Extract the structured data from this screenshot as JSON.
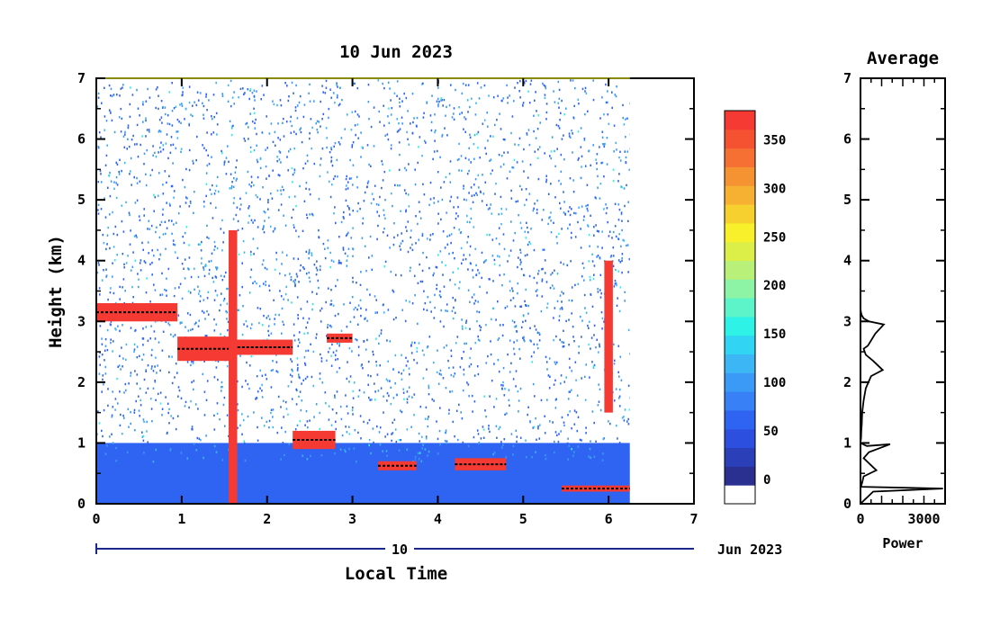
{
  "chart_data": [
    {
      "type": "heatmap",
      "title": "10 Jun 2023",
      "xlabel": "Local Time",
      "ylabel": "Height (km)",
      "xlim": [
        0,
        7
      ],
      "ylim": [
        0,
        7
      ],
      "x_ticks": [
        "0",
        "1",
        "2",
        "3",
        "4",
        "5",
        "6",
        "7"
      ],
      "y_ticks": [
        "0",
        "1",
        "2",
        "3",
        "4",
        "5",
        "6",
        "7"
      ],
      "data_end_time": 6.25,
      "date_axis": {
        "day_label": "10",
        "month_year_label": "Jun 2023"
      },
      "colorbar": {
        "ticks": [
          "0",
          "50",
          "100",
          "150",
          "200",
          "250",
          "300",
          "350"
        ],
        "range": [
          -25,
          380
        ],
        "colors": [
          "#ffffff",
          "#2a3090",
          "#2b3fb8",
          "#2d4fe0",
          "#2f63f2",
          "#3880f5",
          "#3a9af6",
          "#3cb6f4",
          "#32d4f4",
          "#2ef2e6",
          "#5cf4c8",
          "#8cf4a4",
          "#b8f07a",
          "#dcef48",
          "#f7f02a",
          "#f6d02e",
          "#f6b032",
          "#f59232",
          "#f57032",
          "#f55232",
          "#f43a32"
        ]
      },
      "features": [
        {
          "name": "noise-scatter",
          "t": [
            0,
            6.25
          ],
          "z": [
            0.7,
            7
          ],
          "level": 60
        },
        {
          "name": "boundary-layer",
          "t": [
            0,
            6.25
          ],
          "z": [
            0,
            1.0
          ],
          "level": 60
        },
        {
          "name": "cloud-layer",
          "t": [
            0,
            0.95
          ],
          "z": [
            3.0,
            3.3
          ],
          "level": 380
        },
        {
          "name": "cloud-layer",
          "t": [
            0.95,
            1.6
          ],
          "z": [
            2.35,
            2.75
          ],
          "level": 380
        },
        {
          "name": "cloud-layer",
          "t": [
            1.6,
            2.3
          ],
          "z": [
            2.45,
            2.7
          ],
          "level": 380
        },
        {
          "name": "cloud-layer",
          "t": [
            2.7,
            3.0
          ],
          "z": [
            2.65,
            2.8
          ],
          "level": 380
        },
        {
          "name": "precip-streak",
          "t": [
            1.55,
            1.65
          ],
          "z": [
            0,
            4.5
          ],
          "level": 380
        },
        {
          "name": "precip-streak",
          "t": [
            5.95,
            6.05
          ],
          "z": [
            1.5,
            4.0
          ],
          "level": 380
        },
        {
          "name": "low-cloud",
          "t": [
            2.3,
            2.8
          ],
          "z": [
            0.9,
            1.2
          ],
          "level": 380
        },
        {
          "name": "low-cloud",
          "t": [
            3.3,
            3.75
          ],
          "z": [
            0.55,
            0.7
          ],
          "level": 380
        },
        {
          "name": "low-cloud",
          "t": [
            4.2,
            4.8
          ],
          "z": [
            0.55,
            0.75
          ],
          "level": 380
        },
        {
          "name": "low-cloud",
          "t": [
            5.45,
            6.25
          ],
          "z": [
            0.2,
            0.3
          ],
          "level": 380
        }
      ]
    },
    {
      "type": "line",
      "title": "Average",
      "xlabel": "Power",
      "ylabel": "",
      "xlim": [
        0,
        4000
      ],
      "ylim": [
        0,
        7
      ],
      "x_ticks": [
        "0",
        "3000"
      ],
      "y_ticks": [
        "0",
        "1",
        "2",
        "3",
        "4",
        "5",
        "6",
        "7"
      ],
      "series": [
        {
          "x": [
            0,
            0,
            0,
            0,
            0,
            5,
            20,
            60,
            150,
            400,
            1100,
            700,
            350,
            150,
            250,
            600,
            1050,
            500,
            250,
            150,
            80,
            60,
            40,
            30,
            15,
            0,
            0
          ],
          "y": [
            7,
            5.0,
            4.0,
            3.6,
            3.3,
            3.2,
            3.15,
            3.1,
            3.05,
            3.0,
            2.95,
            2.8,
            2.6,
            2.55,
            2.45,
            2.35,
            2.2,
            2.1,
            1.9,
            1.7,
            1.5,
            1.3,
            1.2,
            1.1,
            1.05,
            1.02,
            1.0
          ]
        },
        {
          "x": [
            0,
            300,
            1400,
            400,
            150,
            750,
            150,
            80,
            20,
            3900,
            600,
            0
          ],
          "y": [
            1.0,
            0.95,
            0.98,
            0.85,
            0.75,
            0.55,
            0.45,
            0.35,
            0.28,
            0.25,
            0.2,
            0.0
          ]
        }
      ]
    }
  ]
}
